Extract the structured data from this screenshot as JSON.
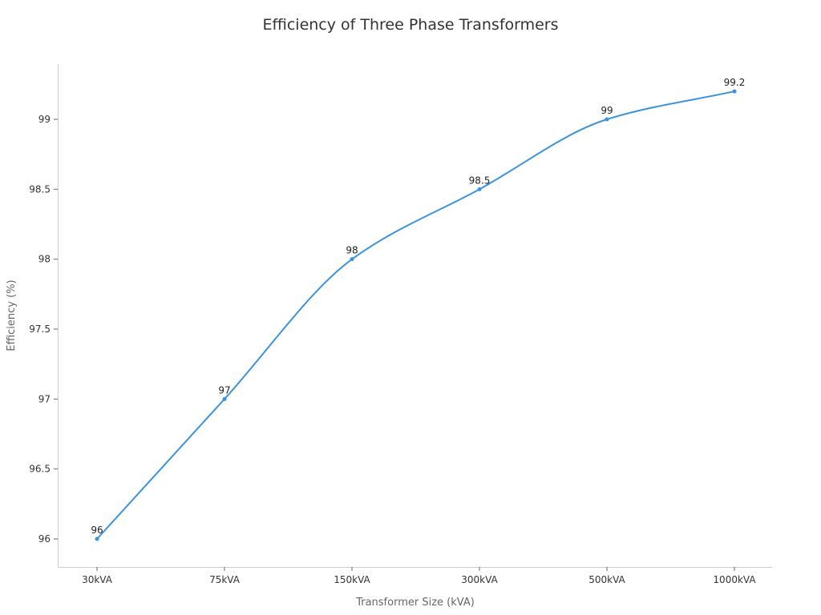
{
  "chart_data": {
    "type": "line",
    "title": "Efficiency of Three Phase Transformers",
    "xlabel": "Transformer Size (kVA)",
    "ylabel": "Efficiency (%)",
    "categories": [
      "30kVA",
      "75kVA",
      "150kVA",
      "300kVA",
      "500kVA",
      "1000kVA"
    ],
    "series": [
      {
        "name": "Efficiency",
        "values": [
          96,
          97,
          98,
          98.5,
          99,
          99.2
        ],
        "color": "#3a93dd"
      }
    ],
    "data_labels": [
      "96",
      "97",
      "98",
      "98.5",
      "99",
      "99.2"
    ],
    "yticks": [
      96,
      96.5,
      97,
      97.5,
      98,
      98.5,
      99
    ],
    "ytick_labels": [
      "96",
      "96.5",
      "97",
      "97.5",
      "98",
      "98.5",
      "99"
    ],
    "ylim": [
      95.8,
      99.4
    ],
    "grid": false,
    "legend": "none",
    "smooth": true
  }
}
